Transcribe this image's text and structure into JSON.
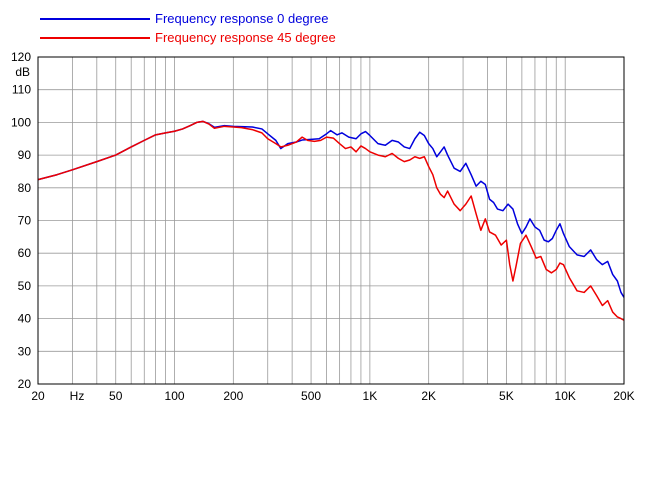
{
  "chart_data": {
    "type": "line",
    "x_scale": "log",
    "xlim": [
      20,
      20000
    ],
    "ylim": [
      20,
      120
    ],
    "ylabel": "dB",
    "xlabel": "Hz",
    "grid": true,
    "legend_position": "top-left",
    "x_tick_labels": [
      {
        "value": 20,
        "label": "20"
      },
      {
        "value": 50,
        "label": "50"
      },
      {
        "value": 100,
        "label": "100"
      },
      {
        "value": 200,
        "label": "200"
      },
      {
        "value": 500,
        "label": "500"
      },
      {
        "value": 1000,
        "label": "1K"
      },
      {
        "value": 2000,
        "label": "2K"
      },
      {
        "value": 5000,
        "label": "5K"
      },
      {
        "value": 10000,
        "label": "10K"
      },
      {
        "value": 20000,
        "label": "20K"
      }
    ],
    "y_ticks": [
      20,
      30,
      40,
      50,
      60,
      70,
      80,
      90,
      100,
      110,
      120
    ],
    "series": [
      {
        "name": "Frequency response 0 degree",
        "color": "#0000dd",
        "points": [
          [
            20,
            82.5
          ],
          [
            25,
            84
          ],
          [
            30,
            85.5
          ],
          [
            40,
            88
          ],
          [
            50,
            90
          ],
          [
            60,
            92.5
          ],
          [
            70,
            94.5
          ],
          [
            80,
            96.2
          ],
          [
            90,
            96.8
          ],
          [
            100,
            97.3
          ],
          [
            110,
            98
          ],
          [
            120,
            99
          ],
          [
            130,
            100
          ],
          [
            140,
            100.3
          ],
          [
            150,
            99.6
          ],
          [
            160,
            98.5
          ],
          [
            180,
            99
          ],
          [
            200,
            98.8
          ],
          [
            220,
            98.7
          ],
          [
            250,
            98.6
          ],
          [
            280,
            98
          ],
          [
            300,
            96.5
          ],
          [
            330,
            94.5
          ],
          [
            350,
            92
          ],
          [
            380,
            93.5
          ],
          [
            420,
            94
          ],
          [
            450,
            94.6
          ],
          [
            500,
            94.8
          ],
          [
            550,
            95
          ],
          [
            600,
            96.5
          ],
          [
            630,
            97.5
          ],
          [
            680,
            96.2
          ],
          [
            720,
            96.8
          ],
          [
            780,
            95.5
          ],
          [
            850,
            95
          ],
          [
            900,
            96.5
          ],
          [
            950,
            97.2
          ],
          [
            1000,
            96
          ],
          [
            1100,
            93.5
          ],
          [
            1200,
            93
          ],
          [
            1300,
            94.5
          ],
          [
            1400,
            94
          ],
          [
            1500,
            92.5
          ],
          [
            1600,
            92
          ],
          [
            1700,
            95
          ],
          [
            1800,
            97
          ],
          [
            1900,
            96
          ],
          [
            2000,
            93.5
          ],
          [
            2100,
            92
          ],
          [
            2200,
            89.5
          ],
          [
            2300,
            91
          ],
          [
            2400,
            92.5
          ],
          [
            2500,
            90
          ],
          [
            2700,
            86
          ],
          [
            2900,
            85
          ],
          [
            3100,
            87.5
          ],
          [
            3300,
            84
          ],
          [
            3500,
            80.5
          ],
          [
            3700,
            82
          ],
          [
            3900,
            81
          ],
          [
            4100,
            76.5
          ],
          [
            4300,
            75.5
          ],
          [
            4500,
            73.5
          ],
          [
            4800,
            73
          ],
          [
            5100,
            75
          ],
          [
            5400,
            73.5
          ],
          [
            5700,
            69
          ],
          [
            6000,
            66
          ],
          [
            6300,
            68
          ],
          [
            6600,
            70.5
          ],
          [
            7000,
            68
          ],
          [
            7400,
            67
          ],
          [
            7800,
            64
          ],
          [
            8200,
            63.5
          ],
          [
            8600,
            64.5
          ],
          [
            9000,
            67
          ],
          [
            9400,
            69
          ],
          [
            9800,
            66
          ],
          [
            10500,
            62
          ],
          [
            11500,
            59.5
          ],
          [
            12500,
            59
          ],
          [
            13500,
            61
          ],
          [
            14500,
            58
          ],
          [
            15500,
            56.5
          ],
          [
            16500,
            57.5
          ],
          [
            17500,
            53.5
          ],
          [
            18500,
            51.5
          ],
          [
            19300,
            48
          ],
          [
            20000,
            46.5
          ]
        ]
      },
      {
        "name": "Frequency response 45 degree",
        "color": "#ee0000",
        "points": [
          [
            20,
            82.5
          ],
          [
            25,
            84
          ],
          [
            30,
            85.5
          ],
          [
            40,
            88
          ],
          [
            50,
            90
          ],
          [
            60,
            92.5
          ],
          [
            70,
            94.5
          ],
          [
            80,
            96.2
          ],
          [
            90,
            96.8
          ],
          [
            100,
            97.3
          ],
          [
            110,
            98
          ],
          [
            120,
            99
          ],
          [
            130,
            100
          ],
          [
            140,
            100.3
          ],
          [
            150,
            99.5
          ],
          [
            160,
            98.2
          ],
          [
            180,
            98.8
          ],
          [
            200,
            98.6
          ],
          [
            220,
            98.4
          ],
          [
            250,
            97.8
          ],
          [
            280,
            96.8
          ],
          [
            300,
            95
          ],
          [
            330,
            93.5
          ],
          [
            350,
            92.5
          ],
          [
            380,
            93
          ],
          [
            420,
            94
          ],
          [
            450,
            95.5
          ],
          [
            480,
            94.5
          ],
          [
            520,
            94.2
          ],
          [
            560,
            94.5
          ],
          [
            600,
            95.5
          ],
          [
            650,
            95.2
          ],
          [
            700,
            93.5
          ],
          [
            750,
            92
          ],
          [
            800,
            92.5
          ],
          [
            850,
            91
          ],
          [
            900,
            92.8
          ],
          [
            950,
            92
          ],
          [
            1000,
            91
          ],
          [
            1100,
            90
          ],
          [
            1200,
            89.5
          ],
          [
            1300,
            90.5
          ],
          [
            1400,
            89
          ],
          [
            1500,
            88
          ],
          [
            1600,
            88.5
          ],
          [
            1700,
            89.5
          ],
          [
            1800,
            89
          ],
          [
            1900,
            89.5
          ],
          [
            2000,
            86.5
          ],
          [
            2100,
            84
          ],
          [
            2200,
            80
          ],
          [
            2300,
            78
          ],
          [
            2400,
            77
          ],
          [
            2500,
            79
          ],
          [
            2700,
            75
          ],
          [
            2900,
            73
          ],
          [
            3100,
            75
          ],
          [
            3300,
            77.5
          ],
          [
            3500,
            72
          ],
          [
            3700,
            67
          ],
          [
            3900,
            70.5
          ],
          [
            4100,
            66.5
          ],
          [
            4400,
            65.5
          ],
          [
            4700,
            62.5
          ],
          [
            5000,
            64
          ],
          [
            5200,
            56.5
          ],
          [
            5400,
            51.5
          ],
          [
            5600,
            56
          ],
          [
            5900,
            63
          ],
          [
            6300,
            65.5
          ],
          [
            6700,
            62
          ],
          [
            7100,
            58.5
          ],
          [
            7500,
            59
          ],
          [
            8000,
            55
          ],
          [
            8500,
            54
          ],
          [
            9000,
            55
          ],
          [
            9400,
            57
          ],
          [
            9800,
            56.5
          ],
          [
            10500,
            52.5
          ],
          [
            11500,
            48.5
          ],
          [
            12500,
            48
          ],
          [
            13500,
            50
          ],
          [
            14500,
            47
          ],
          [
            15500,
            44
          ],
          [
            16500,
            45.5
          ],
          [
            17500,
            42
          ],
          [
            18500,
            40.5
          ],
          [
            19300,
            40
          ],
          [
            20000,
            39.5
          ]
        ]
      }
    ]
  }
}
